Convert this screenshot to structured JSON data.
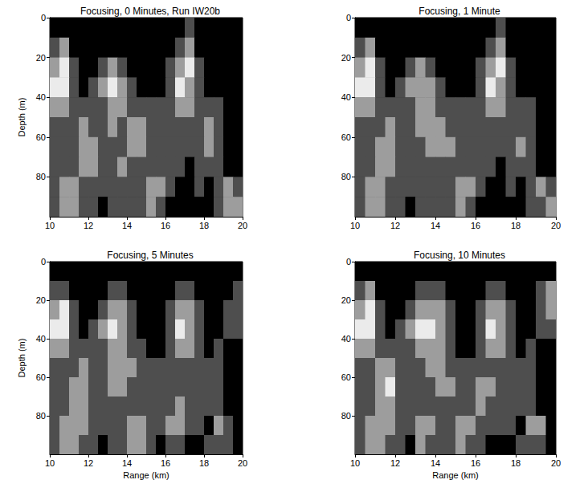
{
  "chart_data": [
    {
      "type": "heatmap",
      "title": "Focusing, 0 Minutes, Run IW20b",
      "x": [
        10.25,
        10.75,
        11.25,
        11.75,
        12.25,
        12.75,
        13.25,
        13.75,
        14.25,
        14.75,
        15.25,
        15.75,
        16.25,
        16.75,
        17.25,
        17.75,
        18.25,
        18.75,
        19.25,
        19.75
      ],
      "y": [
        5,
        15,
        25,
        35,
        45,
        55,
        65,
        75,
        85,
        95
      ],
      "values": [
        [
          0,
          0,
          0,
          0,
          0,
          0,
          0,
          0,
          0,
          0,
          0,
          0,
          0,
          0,
          1,
          0,
          0,
          0,
          0,
          0
        ],
        [
          1,
          2,
          0,
          0,
          0,
          0,
          0,
          0,
          0,
          0,
          0,
          0,
          0,
          1,
          2,
          0,
          0,
          0,
          0,
          0
        ],
        [
          2,
          3,
          1,
          0,
          0,
          1,
          2,
          1,
          0,
          0,
          0,
          0,
          1,
          2,
          3,
          1,
          0,
          0,
          0,
          0
        ],
        [
          3,
          3,
          1,
          0,
          1,
          2,
          3,
          2,
          1,
          0,
          0,
          0,
          1,
          3,
          2,
          1,
          0,
          0,
          0,
          0
        ],
        [
          2,
          2,
          1,
          1,
          1,
          1,
          2,
          2,
          1,
          1,
          1,
          1,
          1,
          2,
          2,
          1,
          1,
          1,
          0,
          0
        ],
        [
          1,
          1,
          1,
          2,
          1,
          1,
          2,
          1,
          2,
          2,
          1,
          1,
          1,
          1,
          1,
          1,
          2,
          1,
          0,
          0
        ],
        [
          1,
          1,
          1,
          2,
          2,
          1,
          1,
          1,
          2,
          2,
          1,
          1,
          1,
          1,
          1,
          1,
          2,
          1,
          0,
          0
        ],
        [
          1,
          1,
          1,
          2,
          2,
          1,
          1,
          2,
          1,
          1,
          1,
          1,
          1,
          1,
          0,
          1,
          1,
          1,
          0,
          0
        ],
        [
          1,
          2,
          2,
          1,
          1,
          1,
          1,
          1,
          1,
          1,
          2,
          2,
          1,
          0,
          0,
          1,
          0,
          1,
          2,
          1
        ],
        [
          1,
          2,
          2,
          1,
          1,
          0,
          1,
          1,
          1,
          1,
          2,
          1,
          0,
          0,
          0,
          0,
          0,
          1,
          2,
          2
        ]
      ],
      "xlim": [
        10,
        20
      ],
      "xticks": [
        10,
        12,
        14,
        16,
        18,
        20
      ],
      "ylim": [
        0,
        100
      ],
      "yticks": [
        0,
        20,
        40,
        60,
        80
      ],
      "ylabel": "Depth (m)"
    },
    {
      "type": "heatmap",
      "title": "Focusing, 1 Minute",
      "x": [
        10.25,
        10.75,
        11.25,
        11.75,
        12.25,
        12.75,
        13.25,
        13.75,
        14.25,
        14.75,
        15.25,
        15.75,
        16.25,
        16.75,
        17.25,
        17.75,
        18.25,
        18.75,
        19.25,
        19.75
      ],
      "y": [
        5,
        15,
        25,
        35,
        45,
        55,
        65,
        75,
        85,
        95
      ],
      "values": [
        [
          0,
          0,
          0,
          0,
          0,
          0,
          0,
          0,
          0,
          0,
          0,
          0,
          0,
          0,
          1,
          0,
          0,
          0,
          0,
          0
        ],
        [
          1,
          2,
          0,
          0,
          0,
          0,
          0,
          0,
          0,
          0,
          0,
          0,
          0,
          1,
          2,
          0,
          0,
          0,
          0,
          0
        ],
        [
          2,
          3,
          1,
          0,
          0,
          1,
          2,
          1,
          0,
          0,
          0,
          0,
          1,
          2,
          3,
          1,
          0,
          0,
          0,
          0
        ],
        [
          3,
          3,
          1,
          0,
          1,
          2,
          2,
          2,
          1,
          0,
          0,
          0,
          1,
          3,
          2,
          1,
          0,
          0,
          0,
          0
        ],
        [
          2,
          2,
          1,
          1,
          1,
          1,
          2,
          2,
          1,
          1,
          1,
          1,
          1,
          2,
          2,
          1,
          1,
          1,
          0,
          0
        ],
        [
          1,
          1,
          1,
          2,
          1,
          1,
          2,
          2,
          2,
          1,
          1,
          1,
          1,
          1,
          1,
          1,
          1,
          1,
          0,
          0
        ],
        [
          1,
          1,
          2,
          2,
          1,
          1,
          1,
          2,
          2,
          2,
          1,
          1,
          1,
          1,
          1,
          1,
          2,
          1,
          0,
          0
        ],
        [
          1,
          1,
          2,
          2,
          1,
          1,
          1,
          1,
          1,
          1,
          1,
          1,
          1,
          1,
          0,
          1,
          1,
          1,
          0,
          0
        ],
        [
          1,
          2,
          2,
          1,
          1,
          1,
          1,
          1,
          1,
          1,
          2,
          2,
          1,
          0,
          0,
          1,
          0,
          1,
          2,
          1
        ],
        [
          1,
          2,
          2,
          1,
          1,
          0,
          1,
          1,
          1,
          1,
          2,
          1,
          0,
          0,
          0,
          0,
          0,
          1,
          1,
          2
        ]
      ],
      "xlim": [
        10,
        20
      ],
      "xticks": [
        10,
        12,
        14,
        16,
        18,
        20
      ],
      "ylim": [
        0,
        100
      ],
      "yticks": [
        0,
        20,
        40,
        60,
        80
      ]
    },
    {
      "type": "heatmap",
      "title": "Focusing, 5 Minutes",
      "x": [
        10.25,
        10.75,
        11.25,
        11.75,
        12.25,
        12.75,
        13.25,
        13.75,
        14.25,
        14.75,
        15.25,
        15.75,
        16.25,
        16.75,
        17.25,
        17.75,
        18.25,
        18.75,
        19.25,
        19.75
      ],
      "y": [
        5,
        15,
        25,
        35,
        45,
        55,
        65,
        75,
        85,
        95
      ],
      "values": [
        [
          0,
          0,
          0,
          0,
          0,
          0,
          0,
          0,
          0,
          0,
          0,
          0,
          0,
          0,
          0,
          0,
          0,
          0,
          0,
          0
        ],
        [
          1,
          1,
          0,
          0,
          0,
          0,
          1,
          1,
          0,
          0,
          0,
          0,
          0,
          1,
          1,
          0,
          0,
          0,
          0,
          1
        ],
        [
          2,
          3,
          1,
          0,
          0,
          1,
          2,
          2,
          1,
          0,
          0,
          0,
          1,
          2,
          2,
          1,
          0,
          0,
          1,
          1
        ],
        [
          3,
          3,
          1,
          0,
          1,
          2,
          3,
          2,
          1,
          0,
          0,
          0,
          1,
          3,
          2,
          1,
          0,
          0,
          1,
          1
        ],
        [
          2,
          2,
          1,
          1,
          1,
          1,
          2,
          2,
          1,
          1,
          0,
          0,
          1,
          2,
          2,
          1,
          0,
          1,
          0,
          0
        ],
        [
          1,
          1,
          1,
          2,
          1,
          1,
          2,
          2,
          2,
          1,
          1,
          1,
          1,
          1,
          1,
          1,
          1,
          1,
          0,
          0
        ],
        [
          1,
          1,
          2,
          2,
          1,
          1,
          2,
          2,
          1,
          1,
          1,
          1,
          1,
          1,
          1,
          1,
          1,
          1,
          0,
          0
        ],
        [
          1,
          1,
          2,
          2,
          1,
          1,
          1,
          1,
          1,
          1,
          1,
          1,
          1,
          2,
          1,
          1,
          1,
          1,
          0,
          0
        ],
        [
          1,
          2,
          2,
          2,
          1,
          1,
          1,
          1,
          2,
          2,
          1,
          1,
          2,
          2,
          1,
          1,
          0,
          2,
          1,
          0
        ],
        [
          1,
          2,
          2,
          1,
          1,
          0,
          1,
          1,
          2,
          2,
          1,
          0,
          1,
          1,
          0,
          0,
          1,
          1,
          1,
          0
        ]
      ],
      "xlim": [
        10,
        20
      ],
      "xticks": [
        10,
        12,
        14,
        16,
        18,
        20
      ],
      "ylim": [
        0,
        100
      ],
      "yticks": [
        0,
        20,
        40,
        60,
        80
      ],
      "xlabel": "Range (km)",
      "ylabel": "Depth (m)"
    },
    {
      "type": "heatmap",
      "title": "Focusing, 10 Minutes",
      "x": [
        10.25,
        10.75,
        11.25,
        11.75,
        12.25,
        12.75,
        13.25,
        13.75,
        14.25,
        14.75,
        15.25,
        15.75,
        16.25,
        16.75,
        17.25,
        17.75,
        18.25,
        18.75,
        19.25,
        19.75
      ],
      "y": [
        5,
        15,
        25,
        35,
        45,
        55,
        65,
        75,
        85,
        95
      ],
      "values": [
        [
          0,
          0,
          0,
          0,
          0,
          0,
          0,
          0,
          0,
          0,
          0,
          0,
          0,
          0,
          0,
          0,
          0,
          0,
          0,
          0
        ],
        [
          1,
          2,
          0,
          0,
          0,
          0,
          1,
          1,
          1,
          0,
          0,
          0,
          0,
          1,
          1,
          0,
          0,
          0,
          1,
          2
        ],
        [
          2,
          3,
          1,
          0,
          0,
          1,
          2,
          2,
          2,
          1,
          0,
          0,
          1,
          2,
          2,
          1,
          0,
          0,
          1,
          2
        ],
        [
          3,
          3,
          1,
          0,
          1,
          2,
          3,
          3,
          2,
          1,
          0,
          0,
          1,
          3,
          2,
          1,
          0,
          0,
          1,
          1
        ],
        [
          2,
          2,
          1,
          1,
          1,
          1,
          2,
          2,
          2,
          1,
          0,
          0,
          1,
          2,
          2,
          1,
          0,
          1,
          0,
          0
        ],
        [
          1,
          1,
          2,
          2,
          1,
          1,
          1,
          2,
          2,
          1,
          1,
          1,
          1,
          1,
          1,
          1,
          1,
          1,
          0,
          0
        ],
        [
          1,
          1,
          2,
          3,
          1,
          1,
          1,
          1,
          2,
          2,
          1,
          1,
          2,
          2,
          1,
          1,
          1,
          1,
          0,
          0
        ],
        [
          1,
          1,
          2,
          2,
          1,
          1,
          1,
          1,
          1,
          1,
          1,
          1,
          2,
          1,
          1,
          1,
          1,
          1,
          0,
          0
        ],
        [
          1,
          2,
          2,
          2,
          1,
          1,
          2,
          2,
          1,
          1,
          2,
          2,
          1,
          1,
          1,
          1,
          0,
          2,
          2,
          0
        ],
        [
          1,
          2,
          2,
          1,
          1,
          0,
          2,
          1,
          1,
          1,
          2,
          1,
          1,
          0,
          0,
          0,
          1,
          1,
          1,
          0
        ]
      ],
      "xlim": [
        10,
        20
      ],
      "xticks": [
        10,
        12,
        14,
        16,
        18,
        20
      ],
      "ylim": [
        0,
        100
      ],
      "yticks": [
        0,
        20,
        40,
        60,
        80
      ],
      "xlabel": "Range (km)"
    }
  ]
}
